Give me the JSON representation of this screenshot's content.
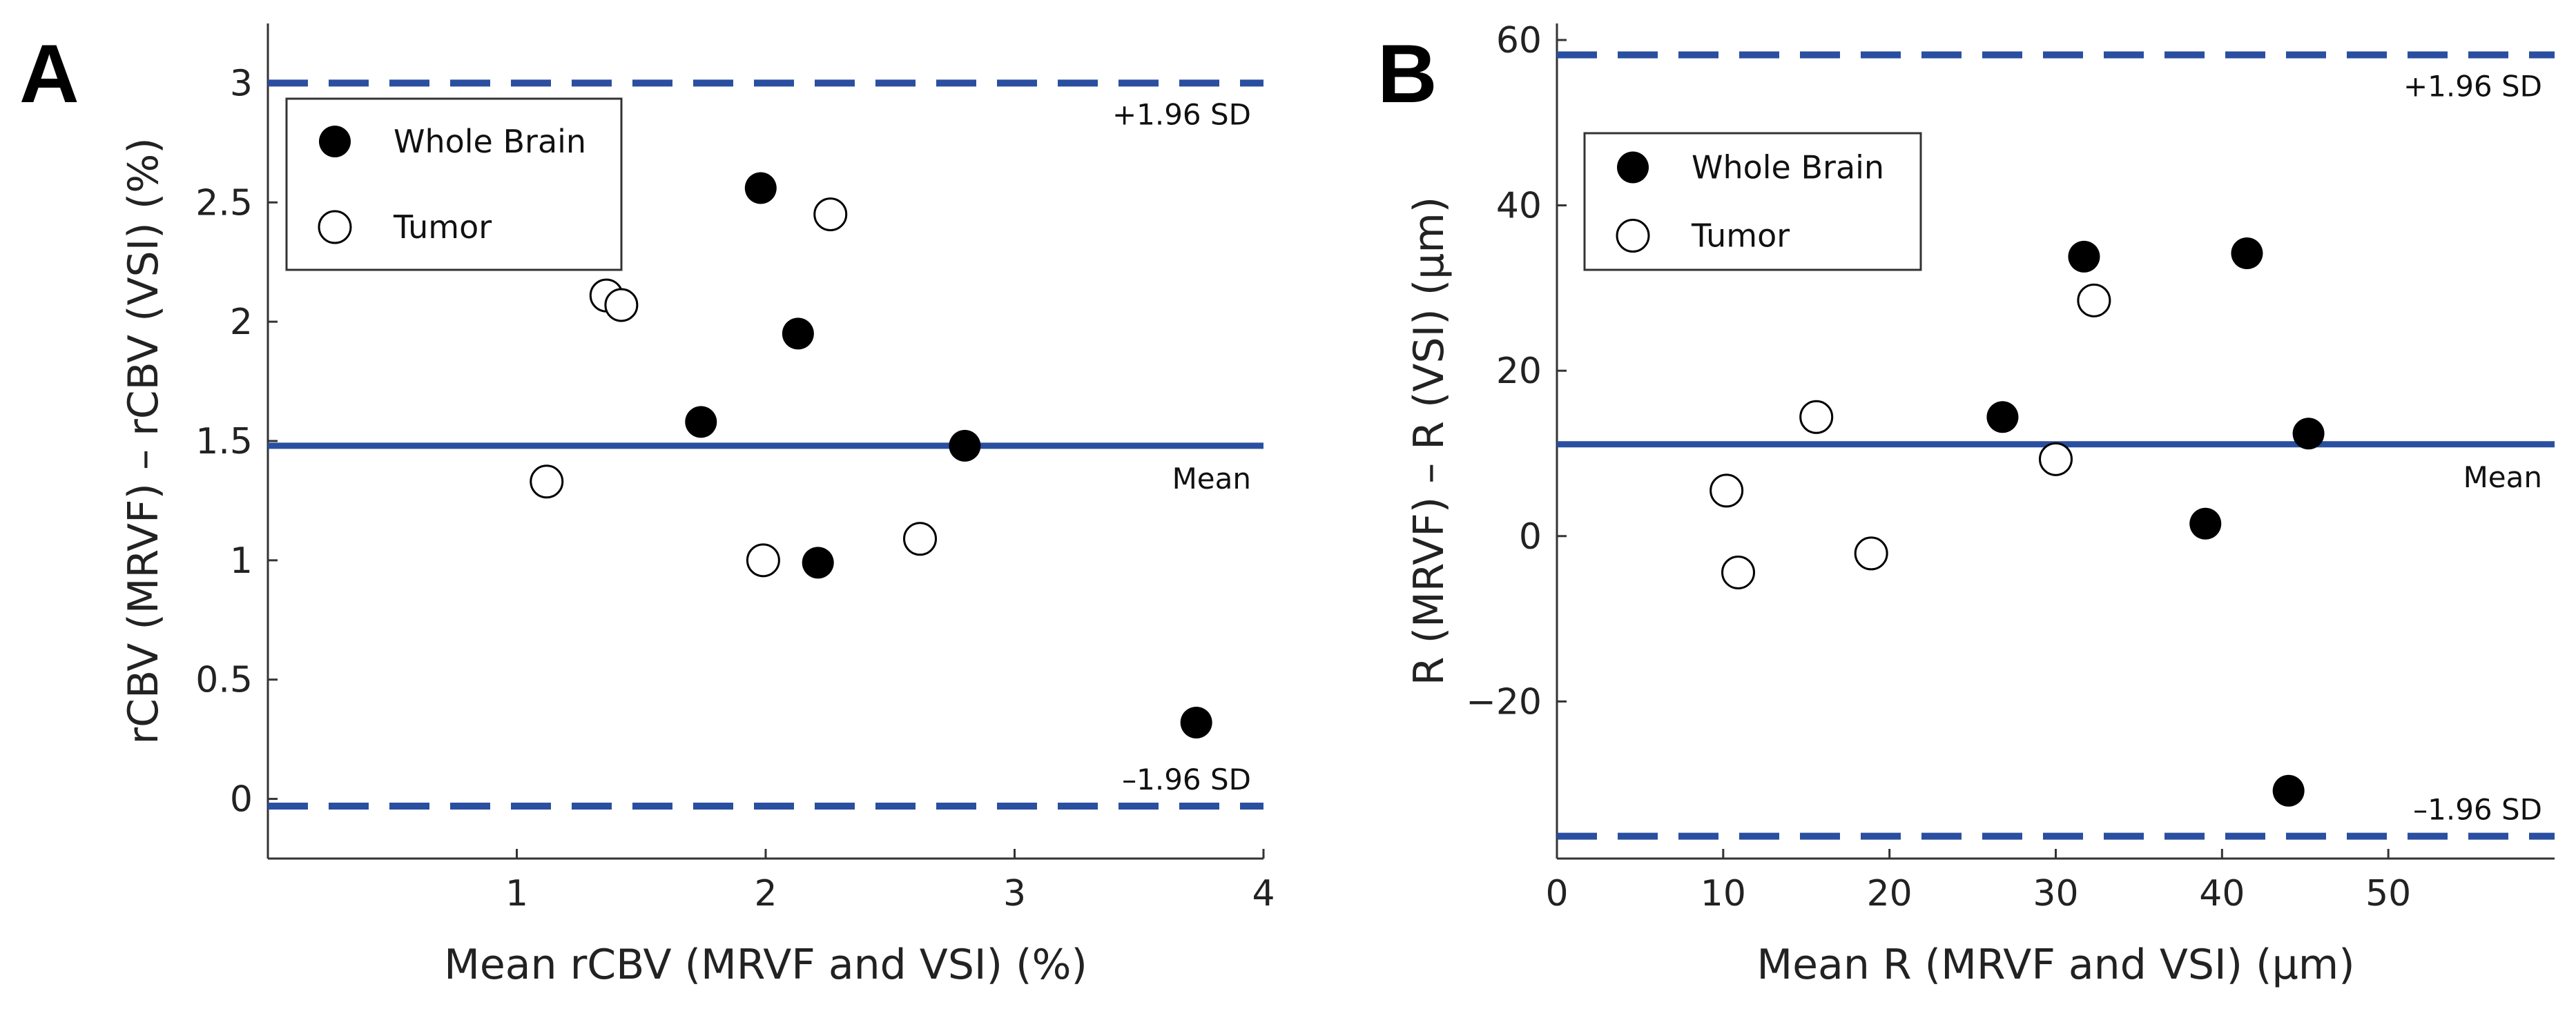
{
  "panels": [
    "A",
    "B"
  ],
  "chart_data": [
    {
      "type": "scatter",
      "panel": "A",
      "xlabel": "Mean rCBV (MRVF and VSI) (%)",
      "ylabel": "rCBV (MRVF) – rCBV (VSI) (%)",
      "xlim": [
        0,
        4
      ],
      "ylim": [
        -0.25,
        3.25
      ],
      "xticks": [
        1,
        2,
        3,
        4
      ],
      "xtick_labels": [
        "1",
        "2",
        "3",
        "4"
      ],
      "yticks": [
        0,
        0.5,
        1,
        1.5,
        2,
        2.5,
        3
      ],
      "ytick_labels": [
        "0",
        "0.5",
        "1",
        "1.5",
        "2",
        "2.5",
        "3"
      ],
      "series": [
        {
          "name": "Whole Brain",
          "marker": "filled",
          "points": [
            [
              1.98,
              2.56
            ],
            [
              2.13,
              1.95
            ],
            [
              1.74,
              1.58
            ],
            [
              2.8,
              1.48
            ],
            [
              2.21,
              0.99
            ],
            [
              3.73,
              0.32
            ]
          ]
        },
        {
          "name": "Tumor",
          "marker": "open",
          "points": [
            [
              2.26,
              2.45
            ],
            [
              1.36,
              2.11
            ],
            [
              1.42,
              2.07
            ],
            [
              1.12,
              1.33
            ],
            [
              1.99,
              1.0
            ],
            [
              2.62,
              1.09
            ]
          ]
        }
      ],
      "reference_lines": [
        {
          "name": "upper-limit",
          "label": "+1.96 SD",
          "y": 3.0,
          "style": "dashed"
        },
        {
          "name": "mean-line",
          "label": "Mean",
          "y": 1.48,
          "style": "solid"
        },
        {
          "name": "lower-limit",
          "label": "–1.96 SD",
          "y": -0.03,
          "style": "dashed"
        }
      ],
      "legend": {
        "position": "top-left",
        "entries": [
          "Whole Brain",
          "Tumor"
        ]
      },
      "line_color": "#2a4fa0"
    },
    {
      "type": "scatter",
      "panel": "B",
      "xlabel": "Mean R (MRVF and VSI) (µm)",
      "ylabel": "R (MRVF) – R (VSI) (µm)",
      "xlim": [
        0,
        60
      ],
      "ylim": [
        -39,
        62
      ],
      "xticks": [
        0,
        10,
        20,
        30,
        40,
        50
      ],
      "xtick_labels": [
        "0",
        "10",
        "20",
        "30",
        "40",
        "50"
      ],
      "yticks": [
        -20,
        0,
        20,
        40,
        60
      ],
      "ytick_labels": [
        "−20",
        "0",
        "20",
        "40",
        "60"
      ],
      "series": [
        {
          "name": "Whole Brain",
          "marker": "filled",
          "points": [
            [
              31.7,
              33.8
            ],
            [
              41.5,
              34.2
            ],
            [
              26.8,
              14.4
            ],
            [
              45.2,
              12.4
            ],
            [
              39.0,
              1.5
            ],
            [
              44.0,
              -30.8
            ]
          ]
        },
        {
          "name": "Tumor",
          "marker": "open",
          "points": [
            [
              32.3,
              28.5
            ],
            [
              15.6,
              14.4
            ],
            [
              30.0,
              9.3
            ],
            [
              10.2,
              5.5
            ],
            [
              10.9,
              -4.4
            ],
            [
              18.9,
              -2.1
            ]
          ]
        }
      ],
      "reference_lines": [
        {
          "name": "upper-limit",
          "label": "+1.96 SD",
          "y": 58.2,
          "style": "dashed"
        },
        {
          "name": "mean-line",
          "label": "Mean",
          "y": 11.1,
          "style": "solid"
        },
        {
          "name": "lower-limit",
          "label": "–1.96 SD",
          "y": -36.3,
          "style": "dashed"
        }
      ],
      "legend": {
        "position": "top-left",
        "entries": [
          "Whole Brain",
          "Tumor"
        ]
      },
      "line_color": "#2a4fa0"
    }
  ]
}
